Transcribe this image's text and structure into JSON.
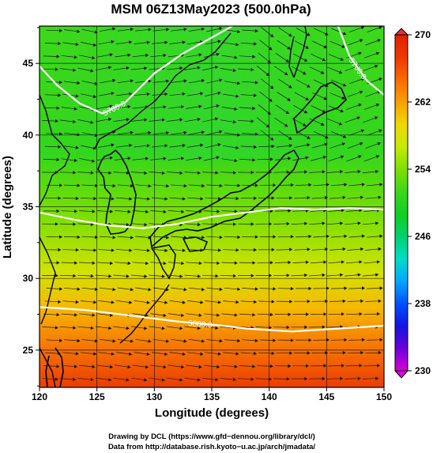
{
  "chart_data": {
    "type": "heatmap",
    "title": "MSM 06Z13May2023 (500.0hPa)",
    "xlabel": "Longitude (degrees)",
    "ylabel": "Latitude  (degrees)",
    "xlim": [
      120,
      150
    ],
    "ylim": [
      22.4,
      47.6
    ],
    "xticks": [
      "120",
      "125",
      "130",
      "135",
      "140",
      "145",
      "150"
    ],
    "yticks": [
      "25",
      "30",
      "35",
      "40",
      "45"
    ],
    "colorbar": {
      "range": [
        230,
        270
      ],
      "ticks": [
        "230",
        "238",
        "246",
        "254",
        "262",
        "270"
      ],
      "colors": [
        "#d600d6",
        "#6a00d8",
        "#1414e0",
        "#0050ff",
        "#00a8ff",
        "#00dcc8",
        "#00d070",
        "#10d020",
        "#3ad81a",
        "#7ee000",
        "#c6ea00",
        "#f0d800",
        "#f8a000",
        "#f86a00",
        "#f03800",
        "#e02000"
      ]
    },
    "contours": [
      {
        "label": "5700.0",
        "points": [
          [
            120,
            44.8
          ],
          [
            121.5,
            43.5
          ],
          [
            123.5,
            42.2
          ],
          [
            125.5,
            41.5
          ],
          [
            127.5,
            42.3
          ],
          [
            130,
            44.3
          ],
          [
            132.5,
            45.7
          ],
          [
            135,
            46.8
          ],
          [
            137,
            47.7
          ]
        ]
      },
      {
        "label": "5700.0",
        "points": [
          [
            146,
            47.6
          ],
          [
            147,
            45.5
          ],
          [
            148.5,
            43.8
          ],
          [
            150,
            42.8
          ]
        ]
      },
      {
        "label": "",
        "points": [
          [
            120,
            34.6
          ],
          [
            123,
            34.1
          ],
          [
            126,
            33.7
          ],
          [
            129,
            33.5
          ],
          [
            132,
            33.8
          ],
          [
            135,
            34.3
          ],
          [
            138,
            34.6
          ],
          [
            141,
            34.9
          ],
          [
            144,
            34.8
          ],
          [
            147,
            34.9
          ],
          [
            150,
            34.8
          ]
        ]
      },
      {
        "label": "5800.0",
        "points": [
          [
            120,
            28.0
          ],
          [
            124,
            27.8
          ],
          [
            128,
            27.4
          ],
          [
            132,
            27.0
          ],
          [
            136,
            26.7
          ],
          [
            138,
            26.5
          ],
          [
            142,
            26.3
          ],
          [
            146,
            26.5
          ],
          [
            150,
            26.7
          ]
        ]
      }
    ]
  },
  "credits": {
    "line1": "Drawing by DCL (https://www.gfd−dennou.org/library/dcl/)",
    "line2": "Data from http://database.rish.kyoto−u.ac.jp/arch/jmadata/"
  }
}
